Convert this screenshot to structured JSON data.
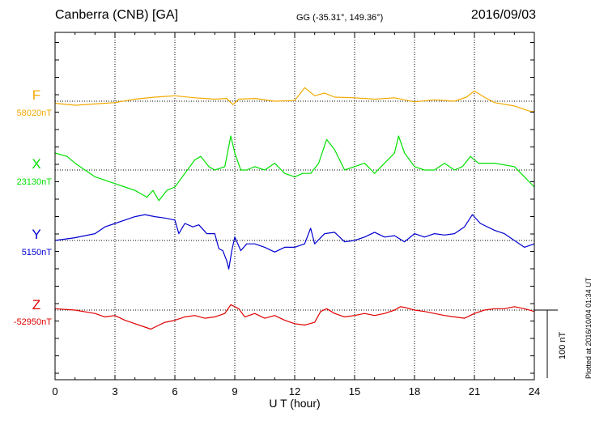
{
  "header": {
    "station": "Canberra (CNB)  [GA]",
    "coords": "GG (-35.31°, 149.36°)",
    "date": "2016/09/03"
  },
  "components": [
    {
      "letter": "F",
      "baseline": "58020nT",
      "color": "#f2a900"
    },
    {
      "letter": "X",
      "baseline": "23130nT",
      "color": "#00e000"
    },
    {
      "letter": "Y",
      "baseline": "5150nT",
      "color": "#0000d0"
    },
    {
      "letter": "Z",
      "baseline": "-52950nT",
      "color": "#e00000"
    }
  ],
  "scale_bar_label": "100 nT",
  "plotted_note": "Plotted at 2016/10/04 01:34 UT",
  "chart_data": {
    "type": "line",
    "xlabel": "U T (hour)",
    "xlim": [
      0,
      24
    ],
    "xticks": [
      0,
      3,
      6,
      9,
      12,
      15,
      18,
      21,
      24
    ],
    "scale_nT": 100,
    "units": "nT (deviation from baseline)",
    "series": [
      {
        "name": "F",
        "color": "#f2a900",
        "x": [
          0,
          1,
          2,
          3,
          4,
          5,
          6,
          7,
          8,
          8.6,
          8.9,
          9.2,
          10,
          11,
          12,
          12.5,
          13,
          13.5,
          14,
          15,
          16,
          17,
          18,
          19,
          20,
          20.6,
          21,
          21.5,
          22,
          23,
          23.8,
          24
        ],
        "y": [
          -3,
          -6,
          -4,
          -2,
          3,
          6,
          8,
          5,
          3,
          4,
          -5,
          3,
          4,
          0,
          1,
          20,
          8,
          12,
          6,
          5,
          3,
          5,
          -1,
          2,
          0,
          6,
          15,
          6,
          -2,
          -7,
          -15,
          -15
        ]
      },
      {
        "name": "X",
        "color": "#00e000",
        "x": [
          0,
          0.6,
          1,
          1.5,
          2,
          2.5,
          3,
          3.5,
          4,
          4.3,
          4.6,
          4.9,
          5.2,
          5.6,
          6,
          6.5,
          7,
          7.3,
          7.7,
          8,
          8.5,
          8.8,
          9.0,
          9.3,
          9.6,
          10,
          10.5,
          11,
          11.5,
          12,
          12.4,
          12.8,
          13.2,
          13.6,
          14,
          14.5,
          15,
          15.5,
          16,
          16.5,
          17,
          17.2,
          17.5,
          18,
          18.5,
          19,
          19.5,
          20,
          20.4,
          20.8,
          21.2,
          22,
          23,
          23.5,
          24
        ],
        "y": [
          25,
          20,
          10,
          0,
          -10,
          -15,
          -20,
          -25,
          -30,
          -35,
          -40,
          -30,
          -45,
          -30,
          -25,
          -5,
          15,
          20,
          5,
          0,
          5,
          50,
          25,
          0,
          0,
          5,
          0,
          10,
          -5,
          -10,
          -5,
          -5,
          10,
          45,
          30,
          0,
          5,
          10,
          -5,
          10,
          25,
          50,
          25,
          5,
          0,
          0,
          10,
          0,
          5,
          20,
          10,
          10,
          5,
          -10,
          -25
        ]
      },
      {
        "name": "Y",
        "color": "#0000d0",
        "x": [
          0,
          1,
          2,
          2.5,
          3,
          3.5,
          4,
          4.5,
          5,
          5.5,
          6,
          6.2,
          6.5,
          6.9,
          7.2,
          7.6,
          8,
          8.2,
          8.4,
          8.6,
          8.7,
          8.85,
          9,
          9.3,
          9.6,
          10,
          10.5,
          11,
          11.5,
          12,
          12.5,
          12.8,
          13,
          13.5,
          14,
          14.5,
          15,
          15.5,
          16,
          16.5,
          17,
          17.5,
          18,
          18.5,
          19,
          19.5,
          20,
          20.5,
          20.9,
          21.3,
          22,
          22.5,
          23,
          23.5,
          24
        ],
        "y": [
          0,
          4,
          10,
          20,
          25,
          30,
          35,
          38,
          35,
          33,
          30,
          10,
          25,
          20,
          23,
          10,
          10,
          -12,
          -15,
          -30,
          -42,
          -15,
          5,
          -15,
          -5,
          -5,
          -10,
          -17,
          -10,
          -10,
          -5,
          18,
          -5,
          10,
          12,
          -2,
          0,
          5,
          12,
          5,
          7,
          -2,
          10,
          5,
          10,
          8,
          10,
          20,
          38,
          25,
          15,
          10,
          0,
          -10,
          -5
        ]
      },
      {
        "name": "Z",
        "color": "#e00000",
        "x": [
          0,
          1,
          2,
          2.5,
          3,
          3.5,
          4,
          4.5,
          4.8,
          5,
          5.5,
          6,
          6.5,
          7,
          7.5,
          8,
          8.5,
          8.8,
          9.2,
          9.5,
          10,
          10.5,
          11,
          11.5,
          12,
          12.5,
          13,
          13.3,
          13.6,
          14,
          14.5,
          15,
          15.5,
          16,
          16.5,
          17,
          17.3,
          17.5,
          18,
          18.5,
          19,
          19.5,
          20,
          20.5,
          21,
          21.5,
          22,
          22.5,
          23,
          23.5,
          24
        ],
        "y": [
          2,
          0,
          -5,
          -10,
          -8,
          -15,
          -20,
          -25,
          -28,
          -25,
          -18,
          -15,
          -10,
          -8,
          -12,
          -10,
          -5,
          8,
          2,
          -10,
          -5,
          -12,
          -8,
          -15,
          -20,
          -22,
          -18,
          -2,
          2,
          -5,
          -10,
          -8,
          -5,
          -8,
          -5,
          0,
          5,
          4,
          0,
          -2,
          -5,
          -8,
          -10,
          -12,
          -5,
          0,
          2,
          2,
          5,
          2,
          -2
        ]
      }
    ]
  }
}
